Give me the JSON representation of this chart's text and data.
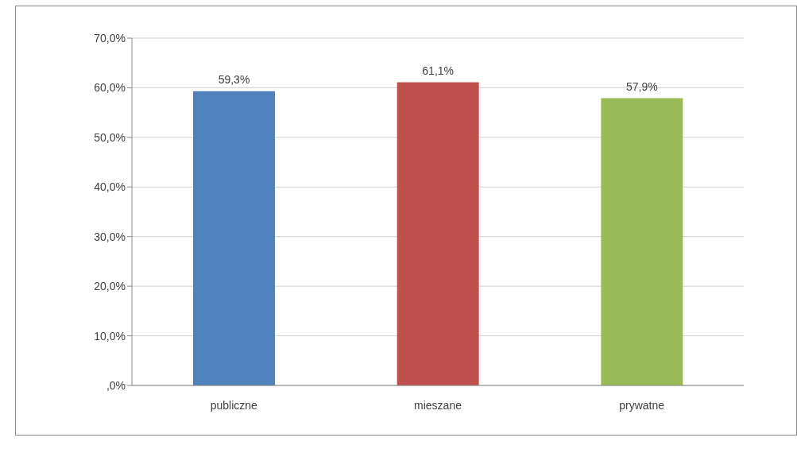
{
  "chart_data": {
    "type": "bar",
    "categories": [
      "publiczne",
      "mieszane",
      "prywatne"
    ],
    "values": [
      59.3,
      61.1,
      57.9
    ],
    "colors": [
      "#4f81bd",
      "#c0504d",
      "#9bbb59"
    ],
    "value_labels": [
      "59,3%",
      "61,1%",
      "57,9%"
    ],
    "ylim": [
      0,
      70
    ],
    "yticks": [
      {
        "value": 0,
        "label": ",0%"
      },
      {
        "value": 10,
        "label": "10,0%"
      },
      {
        "value": 20,
        "label": "20,0%"
      },
      {
        "value": 30,
        "label": "30,0%"
      },
      {
        "value": 40,
        "label": "40,0%"
      },
      {
        "value": 50,
        "label": "50,0%"
      },
      {
        "value": 60,
        "label": "60,0%"
      },
      {
        "value": 70,
        "label": "70,0%"
      }
    ],
    "grid": "y",
    "legend": false
  }
}
